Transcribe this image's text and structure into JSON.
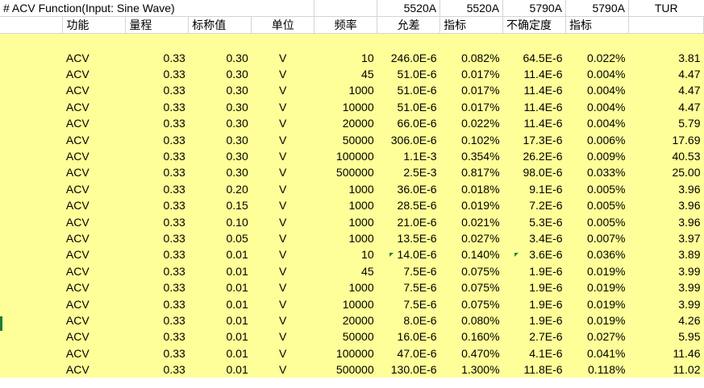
{
  "header": {
    "title": "# ACV Function(Input: Sine Wave)",
    "col_5520a_1": "5520A",
    "col_5520a_2": "5520A",
    "col_5790a_1": "5790A",
    "col_5790a_2": "5790A",
    "col_tur": "TUR"
  },
  "subheader": {
    "function": "功能",
    "range": "量程",
    "nominal": "标称值",
    "unit": "单位",
    "frequency": "频率",
    "tolerance": "允差",
    "spec": "指标",
    "uncertainty": "不确定度",
    "spec2": "指标"
  },
  "rows": [
    [
      "ACV",
      "0.33",
      "0.30",
      "V",
      "10",
      "246.0E-6",
      "0.082%",
      "64.5E-6",
      "0.022%",
      "3.81"
    ],
    [
      "ACV",
      "0.33",
      "0.30",
      "V",
      "45",
      "51.0E-6",
      "0.017%",
      "11.4E-6",
      "0.004%",
      "4.47"
    ],
    [
      "ACV",
      "0.33",
      "0.30",
      "V",
      "1000",
      "51.0E-6",
      "0.017%",
      "11.4E-6",
      "0.004%",
      "4.47"
    ],
    [
      "ACV",
      "0.33",
      "0.30",
      "V",
      "10000",
      "51.0E-6",
      "0.017%",
      "11.4E-6",
      "0.004%",
      "4.47"
    ],
    [
      "ACV",
      "0.33",
      "0.30",
      "V",
      "20000",
      "66.0E-6",
      "0.022%",
      "11.4E-6",
      "0.004%",
      "5.79"
    ],
    [
      "ACV",
      "0.33",
      "0.30",
      "V",
      "50000",
      "306.0E-6",
      "0.102%",
      "17.3E-6",
      "0.006%",
      "17.69"
    ],
    [
      "ACV",
      "0.33",
      "0.30",
      "V",
      "100000",
      "1.1E-3",
      "0.354%",
      "26.2E-6",
      "0.009%",
      "40.53"
    ],
    [
      "ACV",
      "0.33",
      "0.30",
      "V",
      "500000",
      "2.5E-3",
      "0.817%",
      "98.0E-6",
      "0.033%",
      "25.00"
    ],
    [
      "ACV",
      "0.33",
      "0.20",
      "V",
      "1000",
      "36.0E-6",
      "0.018%",
      "9.1E-6",
      "0.005%",
      "3.96"
    ],
    [
      "ACV",
      "0.33",
      "0.15",
      "V",
      "1000",
      "28.5E-6",
      "0.019%",
      "7.2E-6",
      "0.005%",
      "3.96"
    ],
    [
      "ACV",
      "0.33",
      "0.10",
      "V",
      "1000",
      "21.0E-6",
      "0.021%",
      "5.3E-6",
      "0.005%",
      "3.96"
    ],
    [
      "ACV",
      "0.33",
      "0.05",
      "V",
      "1000",
      "13.5E-6",
      "0.027%",
      "3.4E-6",
      "0.007%",
      "3.97"
    ],
    [
      "ACV",
      "0.33",
      "0.01",
      "V",
      "10",
      "14.0E-6",
      "0.140%",
      "3.6E-6",
      "0.036%",
      "3.89"
    ],
    [
      "ACV",
      "0.33",
      "0.01",
      "V",
      "45",
      "7.5E-6",
      "0.075%",
      "1.9E-6",
      "0.019%",
      "3.99"
    ],
    [
      "ACV",
      "0.33",
      "0.01",
      "V",
      "1000",
      "7.5E-6",
      "0.075%",
      "1.9E-6",
      "0.019%",
      "3.99"
    ],
    [
      "ACV",
      "0.33",
      "0.01",
      "V",
      "10000",
      "7.5E-6",
      "0.075%",
      "1.9E-6",
      "0.019%",
      "3.99"
    ],
    [
      "ACV",
      "0.33",
      "0.01",
      "V",
      "20000",
      "8.0E-6",
      "0.080%",
      "1.9E-6",
      "0.019%",
      "4.26"
    ],
    [
      "ACV",
      "0.33",
      "0.01",
      "V",
      "50000",
      "16.0E-6",
      "0.160%",
      "2.7E-6",
      "0.027%",
      "5.95"
    ],
    [
      "ACV",
      "0.33",
      "0.01",
      "V",
      "100000",
      "47.0E-6",
      "0.470%",
      "4.1E-6",
      "0.041%",
      "11.46"
    ],
    [
      "ACV",
      "0.33",
      "0.01",
      "V",
      "500000",
      "130.0E-6",
      "1.300%",
      "11.8E-6",
      "0.118%",
      "11.02"
    ]
  ],
  "colors": {
    "data_fill": "#ffff99",
    "gridline": "#d4d4d4",
    "comment_marker": "#1a8a2a"
  }
}
